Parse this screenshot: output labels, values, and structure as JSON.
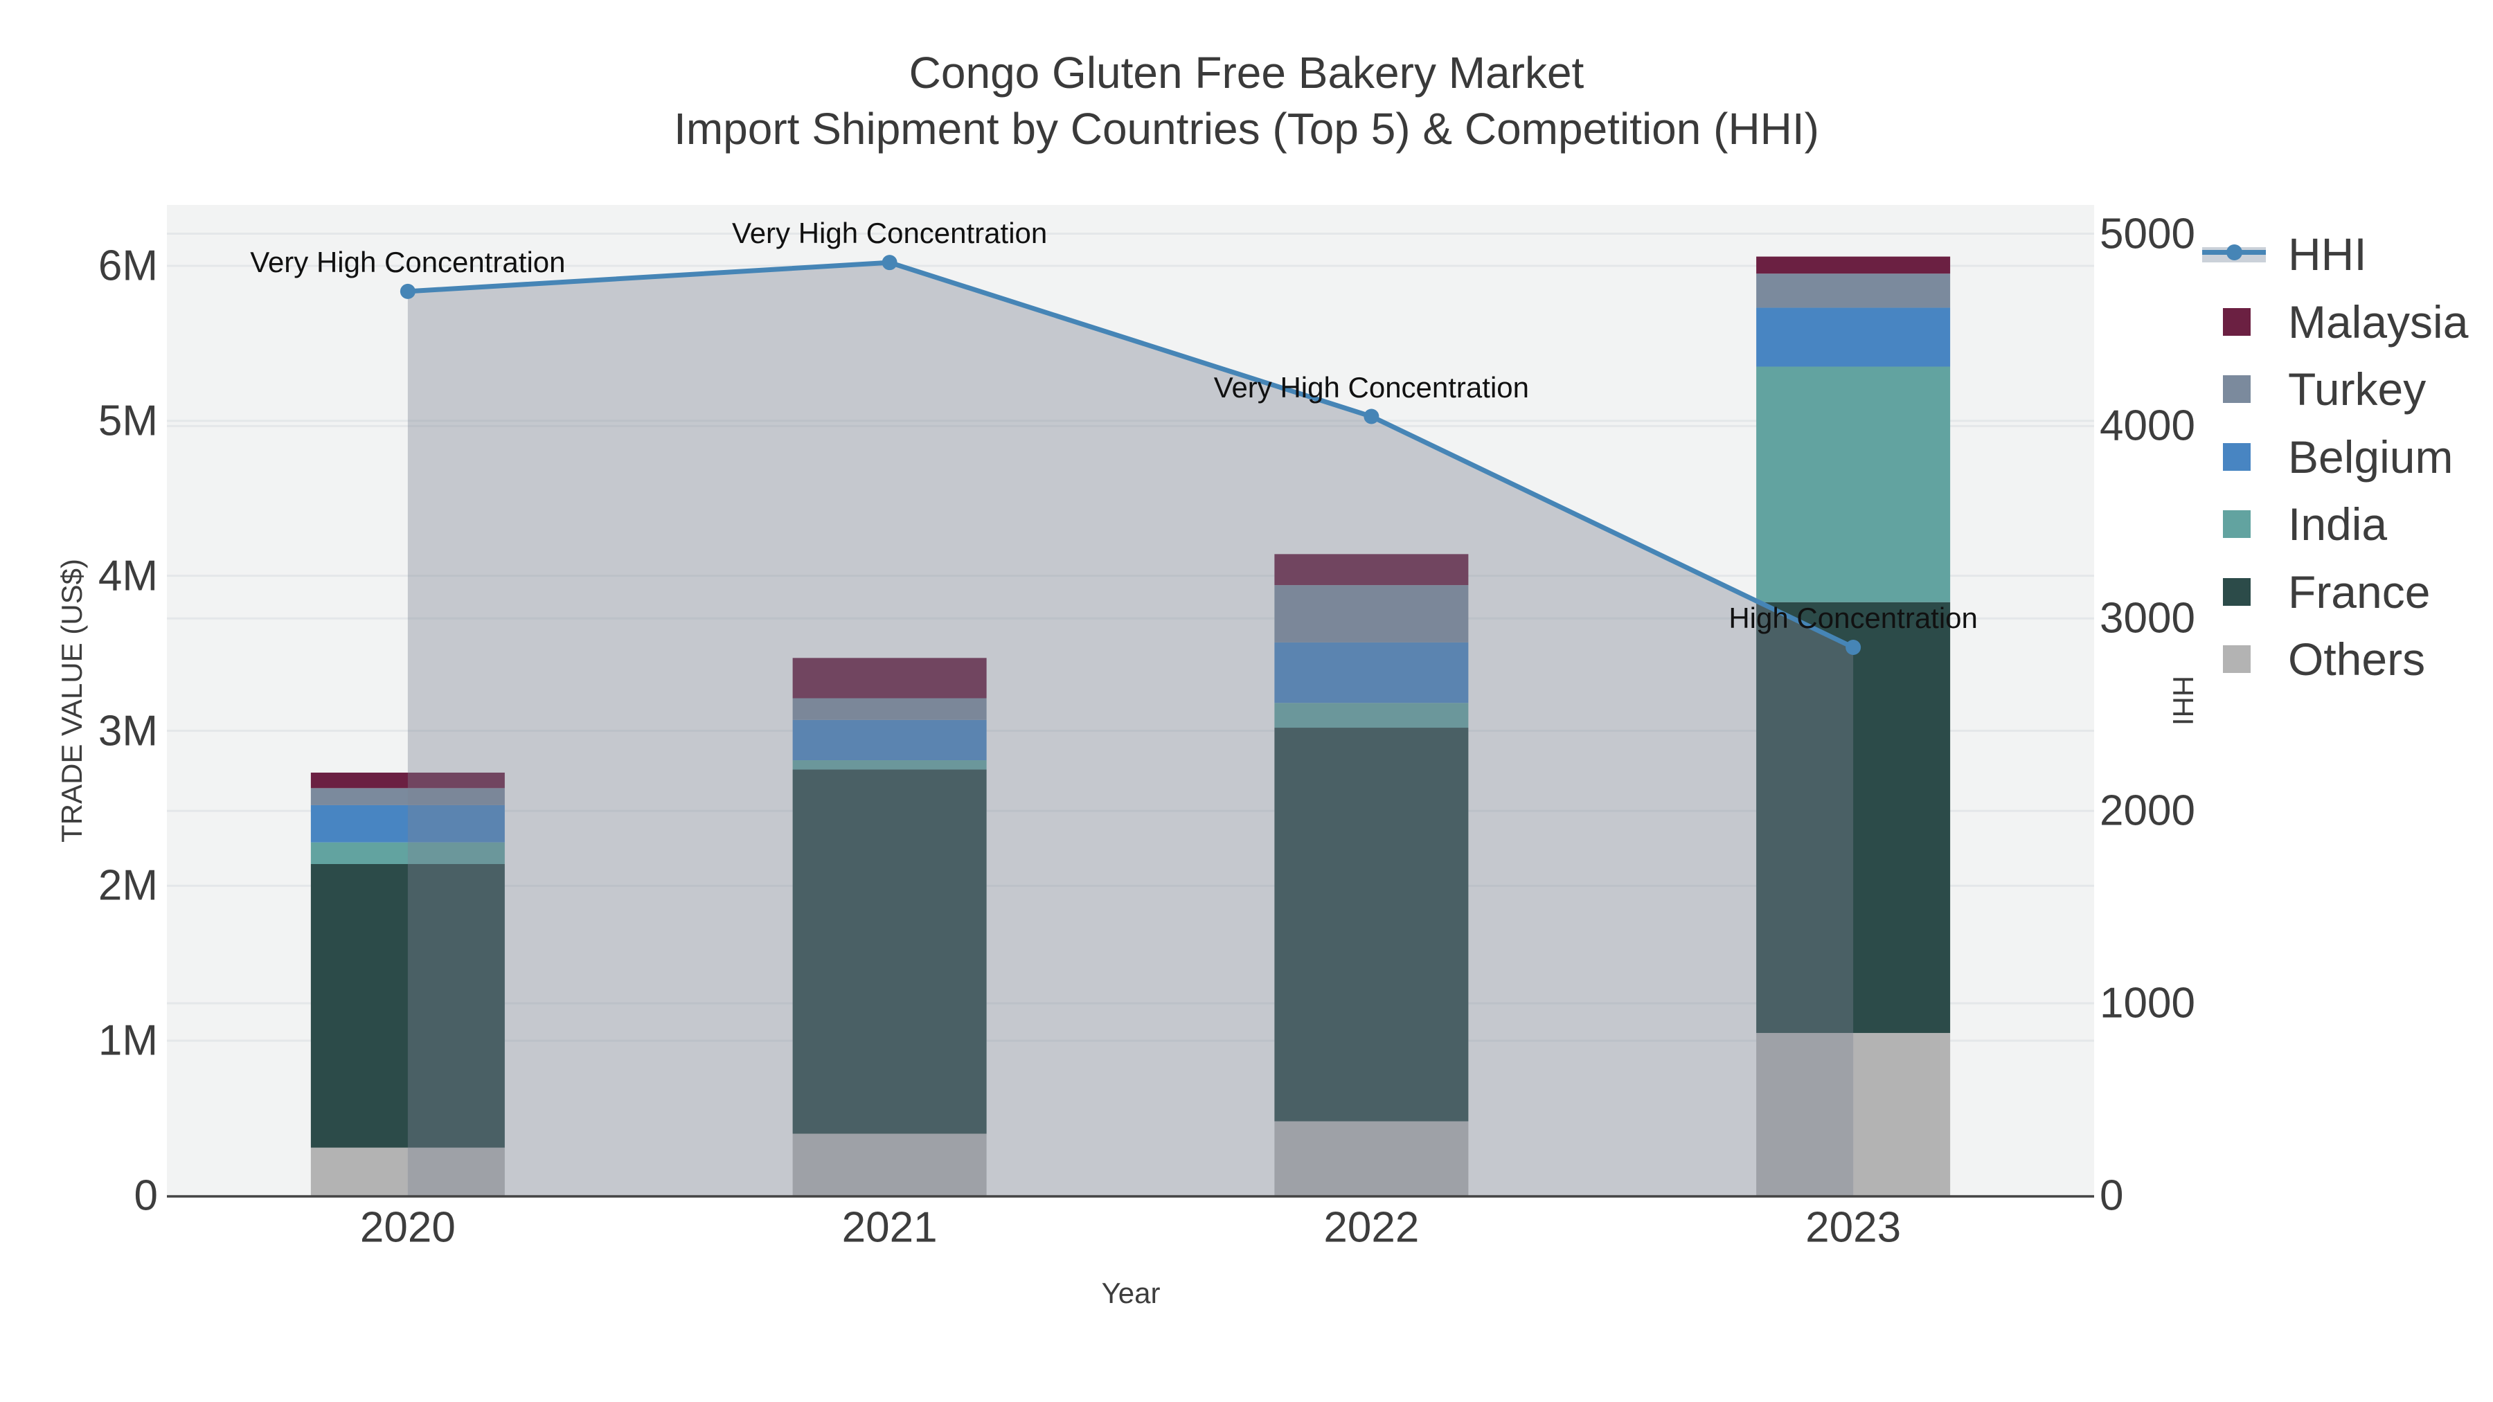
{
  "title": {
    "line1": "Congo Gluten Free Bakery Market",
    "line2": "Import Shipment by Countries (Top 5) & Competition (HHI)"
  },
  "colors": {
    "figure_bg": "#ffffff",
    "plot_bg": "#f2f3f3",
    "gridline": "#e4e7e9",
    "axis_line": "#444444",
    "tick_text": "#3d3d3d",
    "title_text": "#3a3a3a",
    "annotation_text": "#111111",
    "hhi_line": "#4685b6",
    "hhi_area_fill": "rgba(124,132,146,0.38)",
    "legend_area_swatch": "#cbd1d9"
  },
  "chart_data": {
    "type": [
      "stacked-bar",
      "line-area"
    ],
    "categories": [
      "2020",
      "2021",
      "2022",
      "2023"
    ],
    "bar_value_unit": "US$",
    "series": [
      {
        "name": "Malaysia",
        "color": "#6b2042",
        "values": [
          100000,
          260000,
          200000,
          110000
        ]
      },
      {
        "name": "Turkey",
        "color": "#7b8a9d",
        "values": [
          110000,
          140000,
          370000,
          220000
        ]
      },
      {
        "name": "Belgium",
        "color": "#4885c2",
        "values": [
          240000,
          260000,
          390000,
          380000
        ]
      },
      {
        "name": "India",
        "color": "#62a3a0",
        "values": [
          140000,
          60000,
          160000,
          1520000
        ]
      },
      {
        "name": "France",
        "color": "#2c4b49",
        "values": [
          1830000,
          2350000,
          2540000,
          2780000
        ]
      },
      {
        "name": "Others",
        "color": "#b3b3b3",
        "values": [
          310000,
          400000,
          480000,
          1050000
        ]
      }
    ],
    "stack_order_bottom_to_top": [
      "Others",
      "France",
      "India",
      "Belgium",
      "Turkey",
      "Malaysia"
    ],
    "bar_totals": [
      2730000,
      3470000,
      4140000,
      6060000
    ],
    "line_series": {
      "name": "HHI",
      "values": [
        4700,
        4850,
        4050,
        2850
      ]
    },
    "annotations": [
      {
        "category": "2020",
        "text": "Very High Concentration"
      },
      {
        "category": "2021",
        "text": "Very High Concentration"
      },
      {
        "category": "2022",
        "text": "Very High Concentration"
      },
      {
        "category": "2023",
        "text": "High Concentration"
      }
    ],
    "y_left": {
      "title": "TRADE VALUE (US$)",
      "range": [
        0,
        6390000
      ],
      "grid": true,
      "ticks": [
        {
          "v": 0,
          "label": "0"
        },
        {
          "v": 1000000,
          "label": "1M"
        },
        {
          "v": 2000000,
          "label": "2M"
        },
        {
          "v": 3000000,
          "label": "3M"
        },
        {
          "v": 4000000,
          "label": "4M"
        },
        {
          "v": 5000000,
          "label": "5M"
        },
        {
          "v": 6000000,
          "label": "6M"
        }
      ]
    },
    "y_right": {
      "title": "HHI",
      "range": [
        0,
        5140
      ],
      "grid": true,
      "ticks": [
        {
          "v": 0,
          "label": "0"
        },
        {
          "v": 1000,
          "label": "1000"
        },
        {
          "v": 2000,
          "label": "2000"
        },
        {
          "v": 3000,
          "label": "3000"
        },
        {
          "v": 4000,
          "label": "4000"
        },
        {
          "v": 5000,
          "label": "5000"
        }
      ]
    },
    "x": {
      "title": "Year"
    },
    "legend": {
      "position": "right",
      "entries": [
        "HHI",
        "Malaysia",
        "Turkey",
        "Belgium",
        "India",
        "France",
        "Others"
      ]
    }
  }
}
